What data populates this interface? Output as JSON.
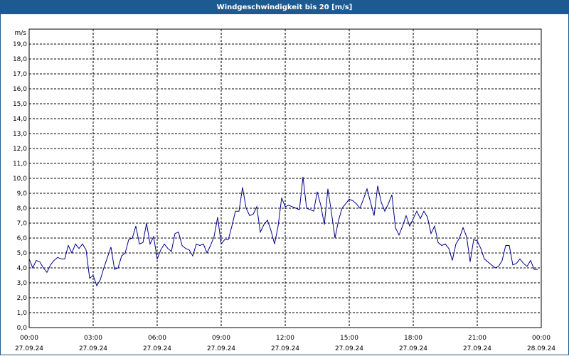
{
  "window": {
    "title": "Windgeschwindigkeit bis 20 [m/s]"
  },
  "colors": {
    "title_bar": "#1e5a92",
    "series": "#00008b",
    "grid": "#000000"
  },
  "chart_data": {
    "type": "line",
    "title": "Windgeschwindigkeit bis 20 [m/s]",
    "ylabel": "m/s",
    "ylim": [
      0,
      20
    ],
    "grid": true,
    "y_ticks": [
      "0,0",
      "1,0",
      "2,0",
      "3,0",
      "4,0",
      "5,0",
      "6,0",
      "7,0",
      "8,0",
      "9,0",
      "10,0",
      "11,0",
      "12,0",
      "13,0",
      "14,0",
      "15,0",
      "16,0",
      "17,0",
      "18,0",
      "19,0"
    ],
    "x_ticks": [
      {
        "time": "00:00",
        "date": "27.09.24"
      },
      {
        "time": "03:00",
        "date": "27.09.24"
      },
      {
        "time": "06:00",
        "date": "27.09.24"
      },
      {
        "time": "09:00",
        "date": "27.09.24"
      },
      {
        "time": "12:00",
        "date": "27.09.24"
      },
      {
        "time": "15:00",
        "date": "27.09.24"
      },
      {
        "time": "18:00",
        "date": "27.09.24"
      },
      {
        "time": "21:00",
        "date": "27.09.24"
      },
      {
        "time": "00:00",
        "date": "28.09.24"
      }
    ],
    "series": [
      {
        "x": [
          "00:00",
          "00:10",
          "00:20",
          "00:30",
          "00:40",
          "00:50",
          "01:00",
          "01:10",
          "01:20",
          "01:30",
          "01:40",
          "01:50",
          "02:00",
          "02:10",
          "02:20",
          "02:30",
          "02:40",
          "02:50",
          "03:00",
          "03:10",
          "03:20",
          "03:30",
          "03:40",
          "03:50",
          "04:00",
          "04:10",
          "04:20",
          "04:30",
          "04:40",
          "04:50",
          "05:00",
          "05:10",
          "05:20",
          "05:30",
          "05:40",
          "05:50",
          "06:00",
          "06:10",
          "06:20",
          "06:30",
          "06:40",
          "06:50",
          "07:00",
          "07:10",
          "07:20",
          "07:30",
          "07:40",
          "07:50",
          "08:00",
          "08:10",
          "08:20",
          "08:30",
          "08:40",
          "08:50",
          "09:00",
          "09:10",
          "09:20",
          "09:30",
          "09:40",
          "09:50",
          "10:00",
          "10:10",
          "10:20",
          "10:30",
          "10:40",
          "10:50",
          "11:00",
          "11:10",
          "11:20",
          "11:30",
          "11:40",
          "11:50",
          "12:00",
          "12:10",
          "12:20",
          "12:30",
          "12:40",
          "12:50",
          "13:00",
          "13:10",
          "13:20",
          "13:30",
          "13:40",
          "13:50",
          "14:00",
          "14:10",
          "14:20",
          "14:30",
          "14:40",
          "14:50",
          "15:00",
          "15:10",
          "15:20",
          "15:30",
          "15:40",
          "15:50",
          "16:00",
          "16:10",
          "16:20",
          "16:30",
          "16:40",
          "16:50",
          "17:00",
          "17:10",
          "17:20",
          "17:30",
          "17:40",
          "17:50",
          "18:00",
          "18:10",
          "18:20",
          "18:30",
          "18:40",
          "18:50",
          "19:00",
          "19:10",
          "19:20",
          "19:30",
          "19:40",
          "19:50",
          "20:00",
          "20:10",
          "20:20",
          "20:30",
          "20:40",
          "20:50",
          "21:00",
          "21:10",
          "21:20",
          "21:30",
          "21:40",
          "21:50",
          "22:00",
          "22:10",
          "22:20",
          "22:30",
          "22:40",
          "22:50",
          "23:00",
          "23:10",
          "23:20",
          "23:30",
          "23:40",
          "23:50"
        ],
        "values": [
          4.6,
          4.0,
          4.5,
          4.4,
          4.0,
          3.7,
          4.2,
          4.5,
          4.7,
          4.6,
          4.6,
          5.5,
          5.0,
          5.6,
          5.3,
          5.6,
          5.2,
          3.3,
          3.5,
          2.8,
          3.2,
          4.0,
          4.7,
          5.4,
          3.9,
          4.0,
          4.8,
          5.0,
          5.9,
          6.0,
          6.8,
          5.6,
          5.7,
          7.0,
          5.6,
          6.1,
          4.6,
          5.2,
          5.6,
          5.3,
          5.1,
          6.3,
          6.4,
          5.5,
          5.3,
          5.2,
          4.8,
          5.6,
          5.5,
          5.6,
          5.0,
          5.5,
          6.1,
          7.4,
          5.6,
          5.9,
          5.9,
          6.8,
          7.8,
          7.8,
          9.4,
          8.0,
          7.5,
          7.6,
          8.1,
          6.4,
          6.9,
          7.2,
          6.5,
          5.6,
          6.8,
          8.7,
          8.1,
          8.2,
          8.1,
          8.0,
          7.9,
          10.1,
          8.0,
          7.9,
          7.8,
          9.1,
          8.2,
          6.9,
          9.3,
          7.7,
          6.0,
          7.2,
          8.0,
          8.3,
          8.6,
          8.5,
          8.3,
          8.0,
          8.6,
          9.3,
          8.4,
          7.5,
          9.5,
          8.4,
          7.8,
          8.3,
          8.9,
          6.7,
          6.2,
          6.8,
          7.5,
          6.8,
          7.3,
          7.8,
          7.3,
          7.8,
          7.4,
          6.3,
          6.8,
          5.7,
          5.5,
          5.6,
          5.3,
          4.5,
          5.6,
          6.0,
          6.7,
          6.1,
          4.4,
          5.9,
          5.8,
          5.3,
          4.6,
          4.4,
          4.2,
          4.0,
          4.1,
          4.5,
          5.5,
          5.5,
          4.2,
          4.3,
          4.6,
          4.3,
          4.1,
          4.5,
          3.9,
          3.9
        ]
      }
    ]
  }
}
